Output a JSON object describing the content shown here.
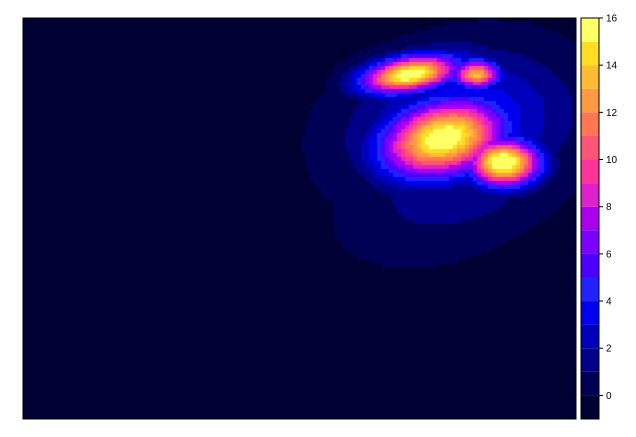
{
  "chart_data": {
    "type": "heatmap",
    "title": "",
    "xlabel": "",
    "ylabel": "",
    "colorbar": {
      "position": "right",
      "zlim": [
        -1,
        16
      ],
      "levels": [
        -1,
        0,
        1,
        2,
        3,
        4,
        5,
        6,
        7,
        8,
        9,
        10,
        11,
        12,
        13,
        14,
        15,
        16
      ],
      "colors": [
        "#000033",
        "#000055",
        "#000088",
        "#0000BB",
        "#0000EE",
        "#2222FF",
        "#4B00FF",
        "#7A00FF",
        "#AA00EE",
        "#DD22CC",
        "#FF3399",
        "#FF5577",
        "#FF7755",
        "#FF9944",
        "#FFBB33",
        "#FFDD22",
        "#FFFF66"
      ],
      "tick_values": [
        0,
        2,
        4,
        6,
        8,
        10,
        12,
        14,
        16
      ],
      "tick_labels": [
        "0",
        "2",
        "4",
        "6",
        "8",
        "10",
        "12",
        "14",
        "16"
      ]
    },
    "background_value": -0.5,
    "hotspots": [
      {
        "x": 0.7,
        "y": 0.86,
        "sx": 0.06,
        "sy": 0.03,
        "value": 16.5,
        "angle": -15
      },
      {
        "x": 0.82,
        "y": 0.86,
        "sx": 0.03,
        "sy": 0.025,
        "value": 13.5,
        "angle": 0
      },
      {
        "x": 0.76,
        "y": 0.7,
        "sx": 0.08,
        "sy": 0.06,
        "value": 16.5,
        "angle": -30
      },
      {
        "x": 0.87,
        "y": 0.64,
        "sx": 0.045,
        "sy": 0.04,
        "value": 17.0,
        "angle": 0
      },
      {
        "x": 0.79,
        "y": 0.73,
        "sx": 0.14,
        "sy": 0.115,
        "value": 4.5,
        "angle": -35
      },
      {
        "x": 0.74,
        "y": 0.88,
        "sx": 0.09,
        "sy": 0.04,
        "value": 3.5,
        "angle": -10
      },
      {
        "x": 0.8,
        "y": 0.6,
        "sx": 0.16,
        "sy": 0.1,
        "value": 1.8,
        "angle": -40
      }
    ]
  }
}
